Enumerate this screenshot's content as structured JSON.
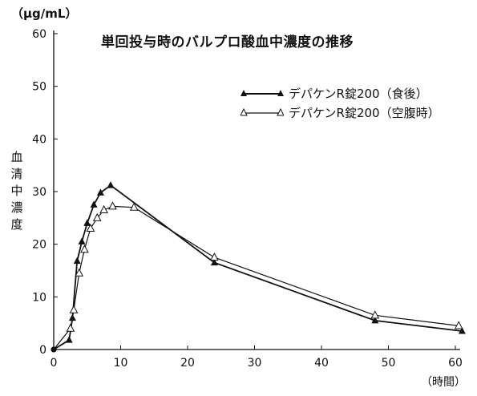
{
  "chart_data": {
    "type": "line",
    "title": "単回投与時のバルプロ酸血中濃度の推移",
    "unit_label": "（μg/mL）",
    "ylabel": "血清中濃度",
    "xlabel": "（時間）",
    "xlim": [
      0,
      60
    ],
    "ylim": [
      0,
      60
    ],
    "xticks": [
      0,
      10,
      20,
      30,
      40,
      50,
      60
    ],
    "yticks": [
      0,
      10,
      20,
      30,
      40,
      50,
      60
    ],
    "grid": false,
    "legend_position": "top-right",
    "series": [
      {
        "name": "デパケンR錠200（食後）",
        "marker": "filled-triangle",
        "color": "#111111",
        "x": [
          0,
          2.3,
          2.8,
          3.5,
          4.2,
          5,
          6,
          7,
          8.5,
          24,
          48,
          61
        ],
        "y": [
          0,
          1.8,
          6,
          16.8,
          20.5,
          24,
          27.5,
          29.8,
          31.2,
          16.5,
          5.5,
          3.5
        ]
      },
      {
        "name": "デパケンR錠200（空腹時）",
        "marker": "open-triangle",
        "color": "#111111",
        "x": [
          0,
          2.5,
          3,
          3.8,
          4.6,
          5.5,
          6.5,
          7.5,
          8.8,
          12,
          24,
          48,
          60.5
        ],
        "y": [
          0,
          4,
          7.5,
          14.5,
          19,
          23,
          25,
          26.5,
          27.2,
          27,
          17.5,
          6.5,
          4.5
        ]
      }
    ]
  }
}
